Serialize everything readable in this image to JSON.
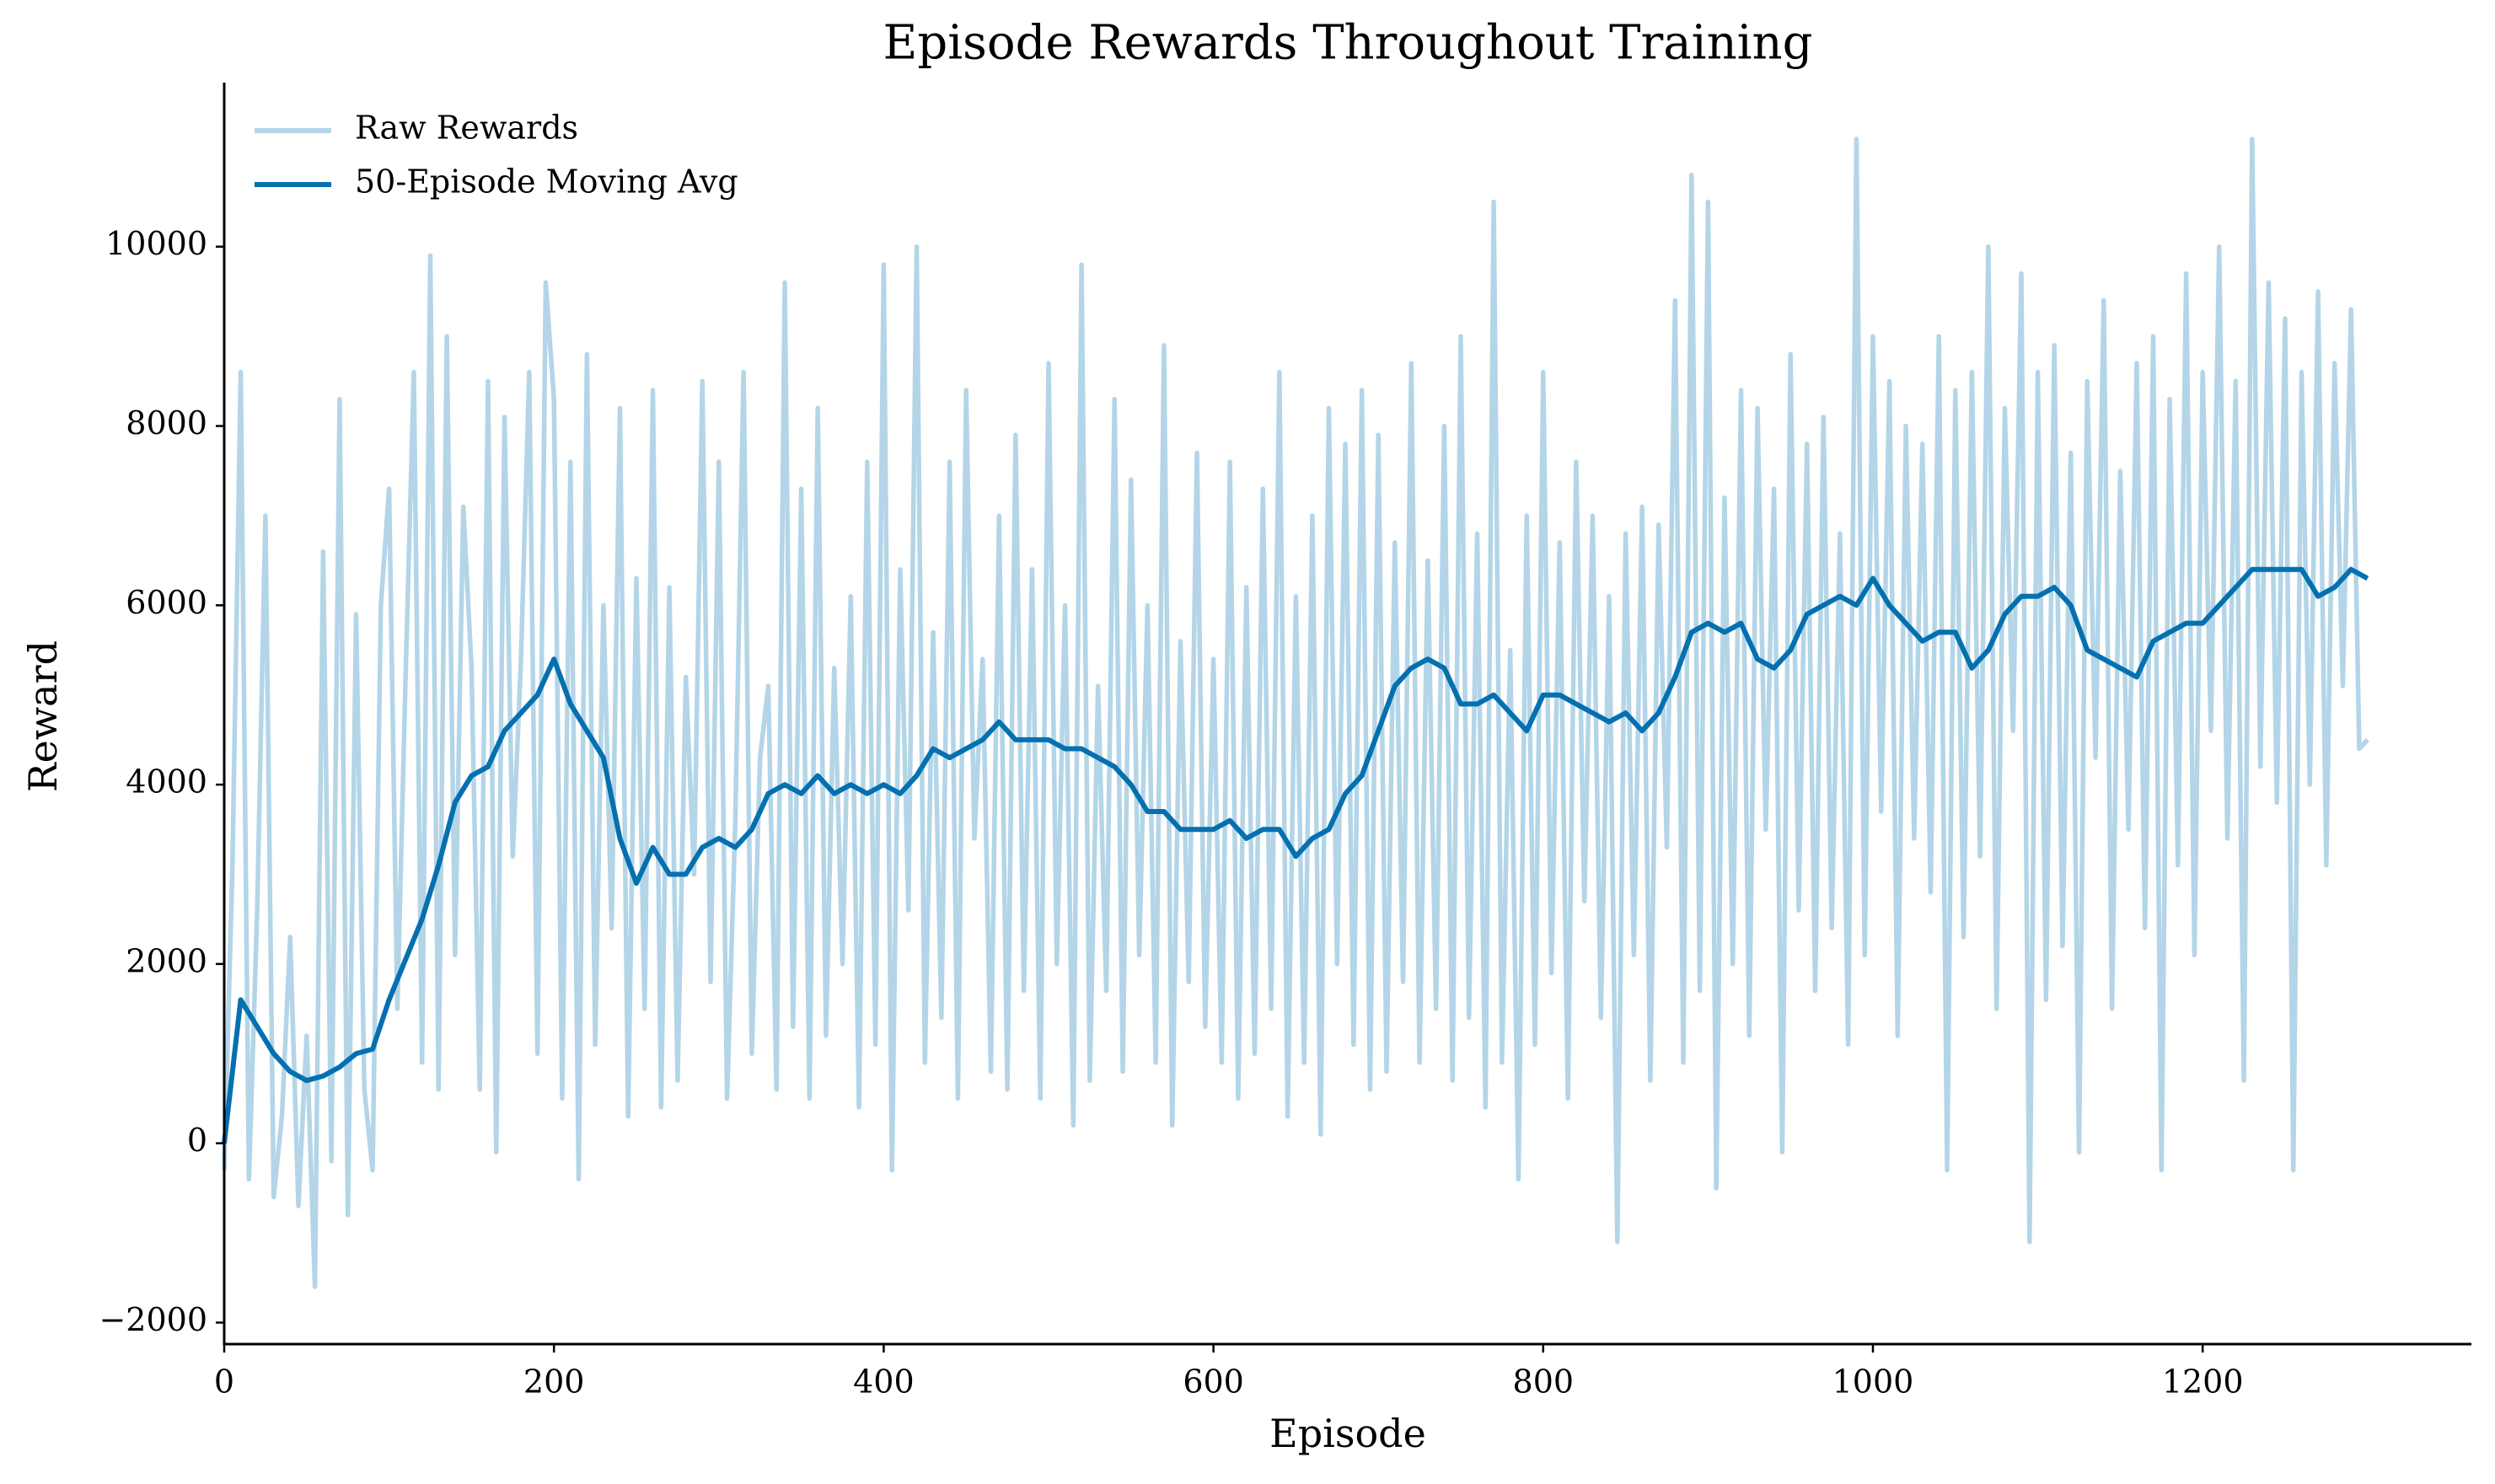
{
  "chart_data": {
    "type": "line",
    "title": "Episode Rewards Throughout Training",
    "x_label": "Episode",
    "y_label": "Reward",
    "xlim": [
      0,
      1363
    ],
    "ylim": [
      -2240,
      11830
    ],
    "xticks": [
      0,
      200,
      400,
      600,
      800,
      1000,
      1200
    ],
    "yticks": [
      {
        "value": -2000,
        "label": "−2000"
      },
      0,
      2000,
      4000,
      6000,
      8000,
      10000
    ],
    "legend": "upper left",
    "series": [
      {
        "name": "Raw Rewards",
        "color": "#b3d5e7",
        "x": [
          0,
          5,
          10,
          15,
          20,
          25,
          30,
          35,
          40,
          45,
          50,
          55,
          60,
          65,
          70,
          75,
          80,
          85,
          90,
          95,
          100,
          105,
          110,
          115,
          120,
          125,
          130,
          135,
          140,
          145,
          150,
          155,
          160,
          165,
          170,
          175,
          180,
          185,
          190,
          195,
          200,
          205,
          210,
          215,
          220,
          225,
          230,
          235,
          240,
          245,
          250,
          255,
          260,
          265,
          270,
          275,
          280,
          285,
          290,
          295,
          300,
          305,
          310,
          315,
          320,
          325,
          330,
          335,
          340,
          345,
          350,
          355,
          360,
          365,
          370,
          375,
          380,
          385,
          390,
          395,
          400,
          405,
          410,
          415,
          420,
          425,
          430,
          435,
          440,
          445,
          450,
          455,
          460,
          465,
          470,
          475,
          480,
          485,
          490,
          495,
          500,
          505,
          510,
          515,
          520,
          525,
          530,
          535,
          540,
          545,
          550,
          555,
          560,
          565,
          570,
          575,
          580,
          585,
          590,
          595,
          600,
          605,
          610,
          615,
          620,
          625,
          630,
          635,
          640,
          645,
          650,
          655,
          660,
          665,
          670,
          675,
          680,
          685,
          690,
          695,
          700,
          705,
          710,
          715,
          720,
          725,
          730,
          735,
          740,
          745,
          750,
          755,
          760,
          765,
          770,
          775,
          780,
          785,
          790,
          795,
          800,
          805,
          810,
          815,
          820,
          825,
          830,
          835,
          840,
          845,
          850,
          855,
          860,
          865,
          870,
          875,
          880,
          885,
          890,
          895,
          900,
          905,
          910,
          915,
          920,
          925,
          930,
          935,
          940,
          945,
          950,
          955,
          960,
          965,
          970,
          975,
          980,
          985,
          990,
          995,
          1000,
          1005,
          1010,
          1015,
          1020,
          1025,
          1030,
          1035,
          1040,
          1045,
          1050,
          1055,
          1060,
          1065,
          1070,
          1075,
          1080,
          1085,
          1090,
          1095,
          1100,
          1105,
          1110,
          1115,
          1120,
          1125,
          1130,
          1135,
          1140,
          1145,
          1150,
          1155,
          1160,
          1165,
          1170,
          1175,
          1180,
          1185,
          1190,
          1195,
          1200,
          1205,
          1210,
          1215,
          1220,
          1225,
          1230,
          1235,
          1240,
          1245,
          1250,
          1255,
          1260,
          1265,
          1270,
          1275,
          1280,
          1285,
          1290,
          1295,
          1300
        ],
        "values": [
          -300,
          3100,
          8600,
          -400,
          2600,
          7000,
          -600,
          300,
          2300,
          -700,
          1200,
          -1600,
          6600,
          -200,
          8300,
          -800,
          5900,
          600,
          -300,
          6000,
          7300,
          1500,
          5200,
          8600,
          900,
          9900,
          600,
          9000,
          2100,
          7100,
          5300,
          600,
          8500,
          -100,
          8100,
          3200,
          5400,
          8600,
          1000,
          9600,
          8300,
          500,
          7600,
          -400,
          8800,
          1100,
          6000,
          2400,
          8200,
          300,
          6300,
          1500,
          8400,
          400,
          6200,
          700,
          5200,
          3000,
          8500,
          1800,
          7600,
          500,
          3600,
          8600,
          1000,
          4300,
          5100,
          600,
          9600,
          1300,
          7300,
          500,
          8200,
          1200,
          5300,
          2000,
          6100,
          400,
          7600,
          1100,
          9800,
          -300,
          6400,
          2600,
          10000,
          900,
          5700,
          1400,
          7600,
          500,
          8400,
          3400,
          5400,
          800,
          7000,
          600,
          7900,
          1700,
          6400,
          500,
          8700,
          2000,
          6000,
          200,
          9800,
          700,
          5100,
          1700,
          8300,
          800,
          7400,
          2100,
          6000,
          900,
          8900,
          200,
          5600,
          1800,
          7700,
          1300,
          5400,
          900,
          7600,
          500,
          6200,
          1000,
          7300,
          1500,
          8600,
          300,
          6100,
          900,
          7000,
          100,
          8200,
          2000,
          7800,
          1100,
          8400,
          600,
          7900,
          800,
          6700,
          1800,
          8700,
          900,
          6500,
          1500,
          8000,
          700,
          9000,
          1400,
          6800,
          400,
          10500,
          900,
          5500,
          -400,
          7000,
          1100,
          8600,
          1900,
          6700,
          500,
          7600,
          2700,
          7000,
          1400,
          6100,
          -1100,
          6800,
          2100,
          7100,
          700,
          6900,
          3300,
          9400,
          900,
          10800,
          1700,
          10500,
          -500,
          7200,
          2000,
          8400,
          1200,
          8200,
          3500,
          7300,
          -100,
          8800,
          2600,
          7800,
          1700,
          8100,
          2400,
          6800,
          1100,
          11200,
          2100,
          9000,
          3700,
          8500,
          1200,
          8000,
          3400,
          7800,
          2800,
          9000,
          -300,
          8400,
          2300,
          8600,
          3200,
          10000,
          1500,
          8200,
          4600,
          9700,
          -1100,
          8600,
          1600,
          8900,
          2200,
          7700,
          -100,
          8500,
          4300,
          9400,
          1500,
          7500,
          3500,
          8700,
          2400,
          9000,
          -300,
          8300,
          3100,
          9700,
          2100,
          8600,
          4600,
          10000,
          3400,
          8500,
          700,
          11200,
          4200,
          9600,
          3800,
          9200,
          -300,
          8600,
          4000,
          9500,
          3100,
          8700,
          5100,
          9300,
          4400,
          4500
        ]
      },
      {
        "name": "50-Episode Moving Avg",
        "color": "#0570b0",
        "x": [
          0,
          10,
          20,
          30,
          40,
          50,
          60,
          70,
          80,
          90,
          100,
          110,
          120,
          130,
          140,
          150,
          160,
          170,
          180,
          190,
          200,
          210,
          220,
          230,
          240,
          250,
          260,
          270,
          280,
          290,
          300,
          310,
          320,
          330,
          340,
          350,
          360,
          370,
          380,
          390,
          400,
          410,
          420,
          430,
          440,
          450,
          460,
          470,
          480,
          490,
          500,
          510,
          520,
          530,
          540,
          550,
          560,
          570,
          580,
          590,
          600,
          610,
          620,
          630,
          640,
          650,
          660,
          670,
          680,
          690,
          700,
          710,
          720,
          730,
          740,
          750,
          760,
          770,
          780,
          790,
          800,
          810,
          820,
          830,
          840,
          850,
          860,
          870,
          880,
          890,
          900,
          910,
          920,
          930,
          940,
          950,
          960,
          970,
          980,
          990,
          1000,
          1010,
          1020,
          1030,
          1040,
          1050,
          1060,
          1070,
          1080,
          1090,
          1100,
          1110,
          1120,
          1130,
          1140,
          1150,
          1160,
          1170,
          1180,
          1190,
          1200,
          1210,
          1220,
          1230,
          1240,
          1250,
          1260,
          1270,
          1280,
          1290,
          1300
        ],
        "values": [
          0,
          1600,
          1300,
          1000,
          800,
          700,
          750,
          850,
          1000,
          1050,
          1600,
          2050,
          2500,
          3100,
          3800,
          4100,
          4200,
          4600,
          4800,
          5000,
          5400,
          4900,
          4600,
          4300,
          3400,
          2900,
          3300,
          3000,
          3000,
          3300,
          3400,
          3300,
          3500,
          3900,
          4000,
          3900,
          4100,
          3900,
          4000,
          3900,
          4000,
          3900,
          4100,
          4400,
          4300,
          4400,
          4500,
          4700,
          4500,
          4500,
          4500,
          4400,
          4400,
          4300,
          4200,
          4000,
          3700,
          3700,
          3500,
          3500,
          3500,
          3600,
          3400,
          3500,
          3500,
          3200,
          3400,
          3500,
          3900,
          4100,
          4600,
          5100,
          5300,
          5400,
          5300,
          4900,
          4900,
          5000,
          4800,
          4600,
          5000,
          5000,
          4900,
          4800,
          4700,
          4800,
          4600,
          4800,
          5200,
          5700,
          5800,
          5700,
          5800,
          5400,
          5300,
          5500,
          5900,
          6000,
          6100,
          6000,
          6300,
          6000,
          5800,
          5600,
          5700,
          5700,
          5300,
          5500,
          5900,
          6100,
          6100,
          6200,
          6000,
          5500,
          5400,
          5300,
          5200,
          5600,
          5700,
          5800,
          5800,
          6000,
          6200,
          6400,
          6400,
          6400,
          6400,
          6100,
          6200,
          6400,
          6300
        ]
      }
    ]
  }
}
